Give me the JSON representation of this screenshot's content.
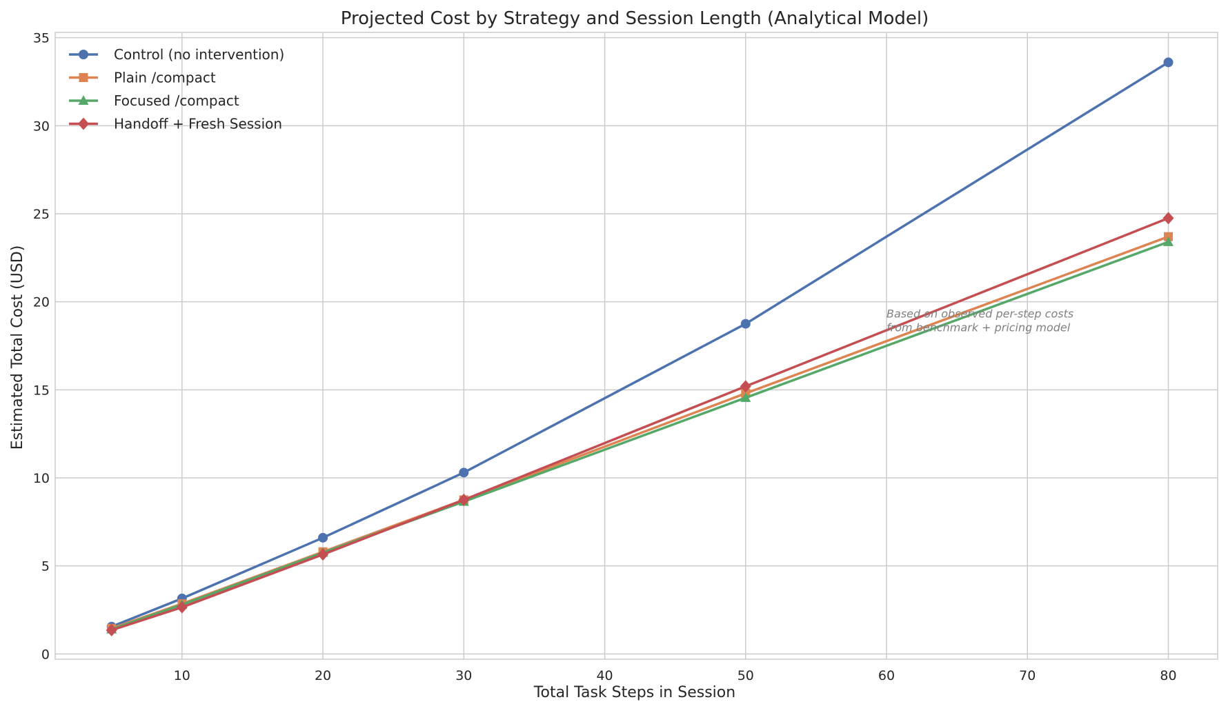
{
  "chart_data": {
    "type": "line",
    "title": "Projected Cost by Strategy and Session Length (Analytical Model)",
    "xlabel": "Total Task Steps in Session",
    "ylabel": "Estimated Total Cost (USD)",
    "xlim": [
      1,
      83.5
    ],
    "ylim": [
      -0.3,
      35.3
    ],
    "xticks": [
      10,
      20,
      30,
      40,
      50,
      60,
      70,
      80
    ],
    "yticks": [
      0,
      5,
      10,
      15,
      20,
      25,
      30,
      35
    ],
    "grid": true,
    "legend_position": "top-left",
    "x": [
      5,
      10,
      20,
      30,
      50,
      80
    ],
    "series": [
      {
        "name": "Control (no intervention)",
        "color": "#4c72b0",
        "marker": "circle",
        "values": [
          1.55,
          3.15,
          6.6,
          10.3,
          18.75,
          33.6
        ]
      },
      {
        "name": "Plain /compact",
        "color": "#dd8452",
        "marker": "square",
        "values": [
          1.45,
          2.85,
          5.8,
          8.75,
          14.8,
          23.7
        ]
      },
      {
        "name": "Focused /compact",
        "color": "#55a868",
        "marker": "triangle",
        "values": [
          1.4,
          2.8,
          5.75,
          8.65,
          14.55,
          23.4
        ]
      },
      {
        "name": "Handoff + Fresh Session",
        "color": "#c44e52",
        "marker": "diamond",
        "values": [
          1.35,
          2.65,
          5.65,
          8.75,
          15.2,
          24.75
        ]
      }
    ],
    "annotation": {
      "lines": [
        "Based on observed per-step costs",
        "from benchmark + pricing model"
      ],
      "x": 60,
      "y": 19.1,
      "color": "#808080"
    }
  }
}
